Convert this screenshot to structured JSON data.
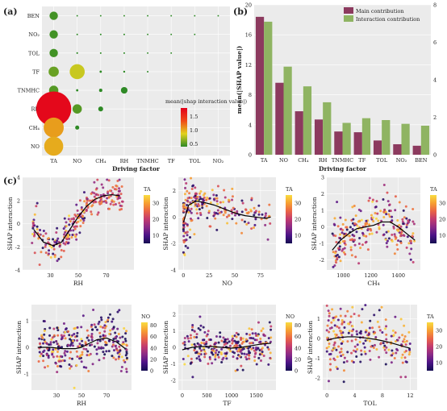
{
  "chart_data": [
    {
      "id": "a",
      "panel_label": "(a)",
      "type": "scatter",
      "subtype": "bubble-matrix",
      "xlabel": "Driving factor",
      "ylabel": "",
      "x_categories": [
        "TA",
        "NO",
        "CH4",
        "RH",
        "TNMHC",
        "TF",
        "TOL",
        "NO2"
      ],
      "x_tick_labels": [
        "TA",
        "NO",
        "CH₄",
        "RH",
        "TNMHC",
        "TF",
        "TOL",
        "NO₂"
      ],
      "y_categories": [
        "BEN",
        "NO2",
        "TOL",
        "TF",
        "TNMHC",
        "RH",
        "CH4",
        "NO"
      ],
      "y_tick_labels": [
        "BEN",
        "NO₂",
        "TOL",
        "TF",
        "TNMHC",
        "RH",
        "CH₄",
        "NO"
      ],
      "colorbar_title": "mean(|shap interaction value|)",
      "colorbar_ticks": [
        "1.5",
        "1.0",
        "0.5"
      ],
      "colorbar_range": [
        0.4,
        1.8
      ],
      "colorbar_colors": [
        "#2f8a26",
        "#e2d21f",
        "#f04a17",
        "#e2001c"
      ],
      "points": [
        {
          "x": "TA",
          "y": "BEN",
          "value": 0.45
        },
        {
          "x": "NO",
          "y": "BEN",
          "value": 0.02
        },
        {
          "x": "CH4",
          "y": "BEN",
          "value": 0.02
        },
        {
          "x": "RH",
          "y": "BEN",
          "value": 0.02
        },
        {
          "x": "TNMHC",
          "y": "BEN",
          "value": 0.02
        },
        {
          "x": "TF",
          "y": "BEN",
          "value": 0.02
        },
        {
          "x": "TOL",
          "y": "BEN",
          "value": 0.02
        },
        {
          "x": "NO2",
          "y": "BEN",
          "value": 0.02
        },
        {
          "x": "TA",
          "y": "NO2",
          "value": 0.45
        },
        {
          "x": "NO",
          "y": "NO2",
          "value": 0.03
        },
        {
          "x": "CH4",
          "y": "NO2",
          "value": 0.03
        },
        {
          "x": "RH",
          "y": "NO2",
          "value": 0.03
        },
        {
          "x": "TNMHC",
          "y": "NO2",
          "value": 0.02
        },
        {
          "x": "TF",
          "y": "NO2",
          "value": 0.02
        },
        {
          "x": "TOL",
          "y": "NO2",
          "value": 0.02
        },
        {
          "x": "TA",
          "y": "TOL",
          "value": 0.45
        },
        {
          "x": "NO",
          "y": "TOL",
          "value": 0.04
        },
        {
          "x": "CH4",
          "y": "TOL",
          "value": 0.03
        },
        {
          "x": "RH",
          "y": "TOL",
          "value": 0.03
        },
        {
          "x": "TNMHC",
          "y": "TOL",
          "value": 0.02
        },
        {
          "x": "TF",
          "y": "TOL",
          "value": 0.02
        },
        {
          "x": "TA",
          "y": "TF",
          "value": 0.55
        },
        {
          "x": "NO",
          "y": "TF",
          "value": 0.8
        },
        {
          "x": "CH4",
          "y": "TF",
          "value": 0.08
        },
        {
          "x": "RH",
          "y": "TF",
          "value": 0.06
        },
        {
          "x": "TNMHC",
          "y": "TF",
          "value": 0.03
        },
        {
          "x": "TA",
          "y": "TNMHC",
          "value": 0.5
        },
        {
          "x": "NO",
          "y": "TNMHC",
          "value": 0.08
        },
        {
          "x": "CH4",
          "y": "TNMHC",
          "value": 0.15
        },
        {
          "x": "RH",
          "y": "TNMHC",
          "value": 0.35
        },
        {
          "x": "TA",
          "y": "RH",
          "value": 1.75
        },
        {
          "x": "NO",
          "y": "RH",
          "value": 0.5
        },
        {
          "x": "CH4",
          "y": "RH",
          "value": 0.25
        },
        {
          "x": "TA",
          "y": "CH4",
          "value": 1.05
        },
        {
          "x": "NO",
          "y": "CH4",
          "value": 0.2
        },
        {
          "x": "TA",
          "y": "NO",
          "value": 1.0
        }
      ]
    },
    {
      "id": "b",
      "panel_label": "(b)",
      "type": "bar",
      "categories": [
        "TA",
        "NO",
        "CH4",
        "RH",
        "TNMHC",
        "TF",
        "TOL",
        "NO2",
        "BEN"
      ],
      "category_labels": [
        "TA",
        "NO",
        "CH₄",
        "RH",
        "TNMHC",
        "TF",
        "TOL",
        "NO₂",
        "BEN"
      ],
      "xlabel": "Driving factor",
      "ylabel": "mean(|SHAP value|)",
      "ylim": [
        0,
        20
      ],
      "yticks": [
        0,
        4,
        8,
        12,
        16,
        20
      ],
      "y2lim": [
        0,
        8
      ],
      "y2ticks": [
        0,
        2,
        4,
        6,
        8
      ],
      "legend_position": "top-right",
      "series": [
        {
          "name": "Main contribution",
          "color": "#8c3a5e",
          "axis": "left",
          "values": [
            18.4,
            9.6,
            5.8,
            4.7,
            3.1,
            3.0,
            1.9,
            1.4,
            1.2
          ]
        },
        {
          "name": "Interaction contribution",
          "color": "#8fb462",
          "axis": "right",
          "values": [
            7.1,
            4.7,
            3.65,
            2.8,
            1.7,
            1.95,
            1.85,
            1.65,
            1.55
          ]
        }
      ]
    },
    {
      "id": "c",
      "panel_label": "(c)",
      "type": "scatter",
      "colormap": [
        "#150e52",
        "#4b1386",
        "#8a2a86",
        "#c23b6f",
        "#ea6446",
        "#f7a032",
        "#f9dc41"
      ],
      "subplots": [
        {
          "xlabel": "RH",
          "ylabel": "SHAP interaction",
          "color_label": "TA",
          "xlim": [
            10,
            90
          ],
          "xticks": [
            30,
            50,
            70
          ],
          "ylim": [
            -4,
            4
          ],
          "yticks": [
            -4,
            -2,
            0,
            2,
            4
          ],
          "clim": [
            5,
            35
          ],
          "cticks": [
            10,
            20,
            30
          ],
          "fit_x": [
            18,
            25,
            32,
            38,
            44,
            50,
            56,
            62,
            68,
            74,
            80
          ],
          "fit_y": [
            -0.5,
            -1.6,
            -1.9,
            -1.6,
            -0.5,
            0.6,
            1.5,
            2.1,
            2.4,
            2.5,
            2.4
          ],
          "scatter_seed": 11,
          "scatter_n": 260,
          "scatter_style": "rh_ta"
        },
        {
          "xlabel": "NO",
          "ylabel": "SHAP interaction",
          "color_label": "TA",
          "xlim": [
            -5,
            90
          ],
          "xticks": [
            0,
            25,
            50,
            75
          ],
          "ylim": [
            -4,
            3
          ],
          "yticks": [
            -4,
            -2,
            0,
            2
          ],
          "clim": [
            5,
            35
          ],
          "cticks": [
            10,
            20,
            30
          ],
          "fit_x": [
            0,
            5,
            12,
            20,
            30,
            40,
            50,
            60,
            70,
            80,
            85
          ],
          "fit_y": [
            -0.4,
            0.9,
            1.2,
            1.1,
            0.9,
            0.6,
            0.3,
            0.1,
            0.0,
            -0.1,
            0.0
          ],
          "scatter_seed": 23,
          "scatter_n": 240,
          "scatter_style": "no_ta"
        },
        {
          "xlabel": "CH₄",
          "ylabel": "SHAP interaction",
          "color_label": "TA",
          "xlim": [
            880,
            1560
          ],
          "xticks": [
            1000,
            1200,
            1400
          ],
          "ylim": [
            -2.6,
            3
          ],
          "yticks": [
            -2,
            -1,
            0,
            1,
            2,
            3
          ],
          "clim": [
            5,
            35
          ],
          "cticks": [
            10,
            20,
            30
          ],
          "fit_x": [
            920,
            980,
            1040,
            1100,
            1160,
            1220,
            1280,
            1340,
            1400,
            1460,
            1520
          ],
          "fit_y": [
            -1.4,
            -0.8,
            -0.4,
            -0.1,
            0.0,
            0.1,
            0.3,
            0.3,
            0.0,
            -0.4,
            -0.8
          ],
          "scatter_seed": 37,
          "scatter_n": 250,
          "scatter_style": "ch4_ta"
        },
        {
          "xlabel": "RH",
          "ylabel": "SHAP interaction",
          "color_label": "NO",
          "xlim": [
            10,
            90
          ],
          "xticks": [
            30,
            50,
            70
          ],
          "ylim": [
            -1.6,
            1.6
          ],
          "yticks": [
            -1,
            0,
            1
          ],
          "clim": [
            0,
            85
          ],
          "cticks": [
            0,
            20,
            40,
            60,
            80
          ],
          "fit_x": [
            15,
            25,
            35,
            45,
            50,
            55,
            62,
            70,
            78,
            85
          ],
          "fit_y": [
            0.0,
            0.0,
            -0.05,
            -0.05,
            0.0,
            0.12,
            0.28,
            0.35,
            0.2,
            -0.05
          ],
          "scatter_seed": 41,
          "scatter_n": 300,
          "scatter_style": "rh_no"
        },
        {
          "xlabel": "TF",
          "ylabel": "SHAP interaction",
          "color_label": "NO",
          "xlim": [
            -80,
            1900
          ],
          "xticks": [
            0,
            500,
            1000,
            1500
          ],
          "ylim": [
            -2.6,
            2.6
          ],
          "yticks": [
            -2,
            -1,
            0,
            1,
            2
          ],
          "clim": [
            0,
            85
          ],
          "cticks": [
            0,
            20,
            40,
            60,
            80
          ],
          "fit_x": [
            0,
            200,
            400,
            600,
            800,
            1000,
            1200,
            1400,
            1600,
            1800
          ],
          "fit_y": [
            -0.15,
            0.0,
            0.05,
            0.05,
            0.0,
            -0.05,
            0.0,
            0.1,
            0.2,
            0.25
          ],
          "scatter_seed": 53,
          "scatter_n": 280,
          "scatter_style": "tf_no"
        },
        {
          "xlabel": "TOL",
          "ylabel": "SHAP interaction",
          "color_label": "TA",
          "xlim": [
            -0.6,
            13
          ],
          "xticks": [
            0,
            4,
            8,
            12
          ],
          "ylim": [
            -2.6,
            1.7
          ],
          "yticks": [
            -2,
            -1,
            0,
            1
          ],
          "clim": [
            5,
            35
          ],
          "cticks": [
            10,
            20,
            30
          ],
          "fit_x": [
            0,
            1,
            2,
            3,
            4,
            5,
            6,
            7,
            8,
            9,
            10,
            11,
            12
          ],
          "fit_y": [
            -0.1,
            0.0,
            0.05,
            0.08,
            0.08,
            0.05,
            0.0,
            -0.05,
            -0.12,
            -0.2,
            -0.3,
            -0.4,
            -0.5
          ],
          "scatter_seed": 67,
          "scatter_n": 230,
          "scatter_style": "tol_ta"
        }
      ]
    }
  ]
}
